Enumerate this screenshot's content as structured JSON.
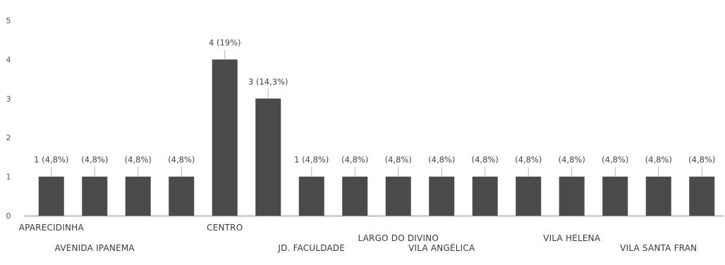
{
  "chart_data": {
    "type": "bar",
    "title": "",
    "xlabel": "",
    "ylabel": "",
    "ylim": [
      0,
      5
    ],
    "yticks": [
      0,
      1,
      2,
      3,
      4,
      5
    ],
    "grid": false,
    "legend": "none",
    "bar_color": "#4a4a4a",
    "categories": [
      "APARECIDINHA",
      "AVENIDA IPANEMA",
      "",
      "",
      "CENTRO",
      "",
      "JD. FACULDADE",
      "",
      "LARGO DO DIVINO",
      "VILA ANGÉLICA",
      "",
      "",
      "VILA HELENA",
      "",
      "VILA SANTA FRAN",
      ""
    ],
    "values": [
      1,
      1,
      1,
      1,
      4,
      3,
      1,
      1,
      1,
      1,
      1,
      1,
      1,
      1,
      1,
      1
    ],
    "data_labels": [
      "1 (4,8%)",
      "(4,8%)",
      "(4,8%)",
      "(4,8%)",
      "4 (19%)",
      "3 (14,3%)",
      "1 (4,8%)",
      "(4,8%)",
      "(4,8%)",
      "(4,8%)",
      "(4,8%)",
      "(4,8%)",
      "(4,8%)",
      "(4,8%)",
      "(4,8%)",
      "(4,8%)"
    ]
  }
}
